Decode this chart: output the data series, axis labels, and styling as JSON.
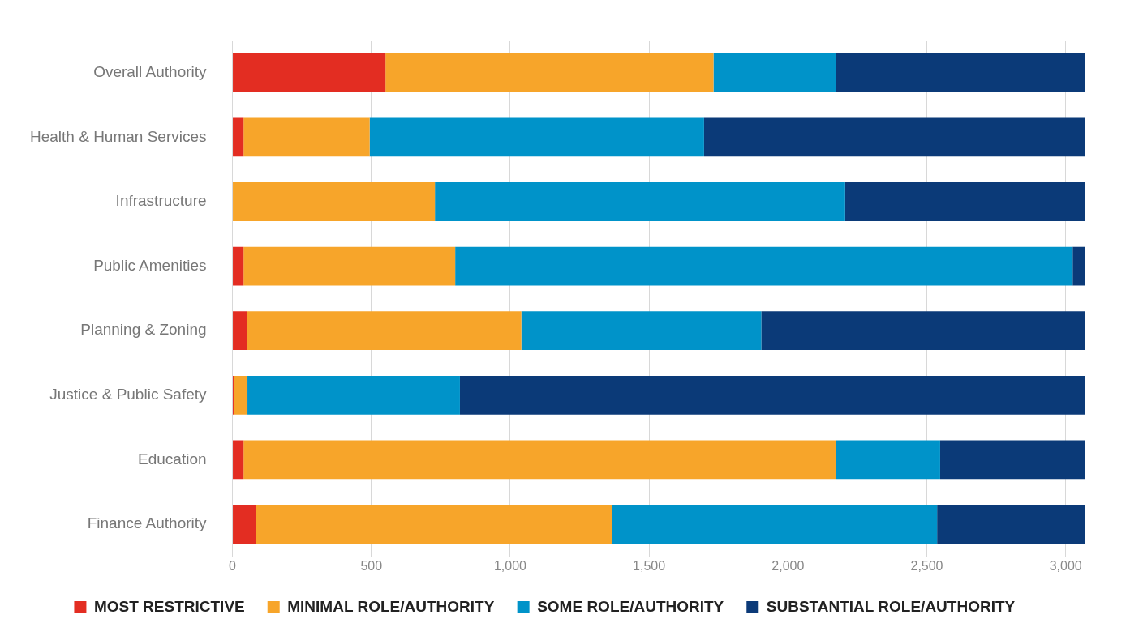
{
  "chart_data": {
    "type": "bar",
    "orientation": "horizontal",
    "stacked": true,
    "categories": [
      "Overall Authority",
      "Health & Human Services",
      "Infrastructure",
      "Public Amenities",
      "Planning & Zoning",
      "Justice & Public Safety",
      "Education",
      "Finance Authority"
    ],
    "series": [
      {
        "name": "MOST RESTRICTIVE",
        "color": "#e32d22",
        "values": [
          551,
          40,
          0,
          40,
          54,
          5,
          40,
          85
        ]
      },
      {
        "name": "MINIMAL ROLE/AUTHORITY",
        "color": "#f7a52a",
        "values": [
          1181,
          454,
          729,
          762,
          986,
          49,
          2132,
          1282
        ]
      },
      {
        "name": "SOME ROLE/AUTHORITY",
        "color": "#0093c9",
        "values": [
          440,
          1204,
          1477,
          2223,
          864,
          765,
          376,
          1170
        ]
      },
      {
        "name": "SUBSTANTIAL ROLE/AUTHORITY",
        "color": "#0b3a78",
        "values": [
          899,
          1373,
          865,
          46,
          1167,
          2252,
          523,
          534
        ]
      }
    ],
    "xlim": [
      0,
      3071
    ],
    "xticks": [
      0,
      500,
      {
        "value": 1000,
        "label": "1,000"
      },
      {
        "value": 1500,
        "label": "1,500"
      },
      {
        "value": 2000,
        "label": "2,000"
      },
      {
        "value": 2500,
        "label": "2,500"
      },
      {
        "value": 3000,
        "label": "3,000"
      }
    ],
    "grid": "x",
    "legend": "bottom"
  }
}
